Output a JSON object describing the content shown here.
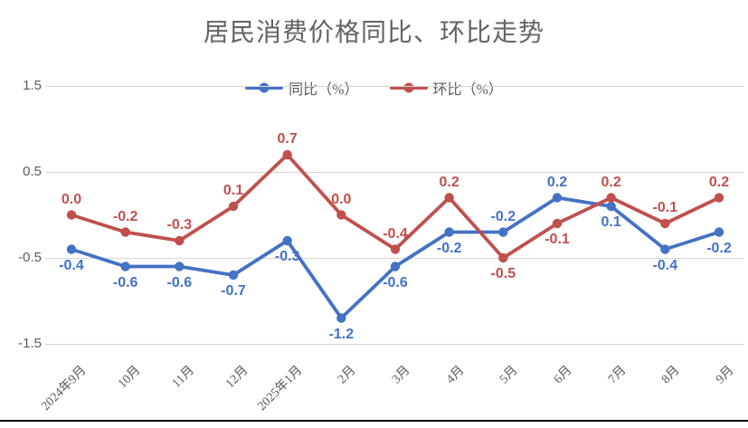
{
  "title": "居民消费价格同比、环比走势",
  "chart_data": {
    "type": "line",
    "title": "居民消费价格同比、环比走势",
    "categories": [
      "2024年9月",
      "10月",
      "11月",
      "12月",
      "2025年1月",
      "2月",
      "3月",
      "4月",
      "5月",
      "6月",
      "7月",
      "8月",
      "9月"
    ],
    "series": [
      {
        "name": "同比（%）",
        "color": "#4472C4",
        "values": [
          -0.4,
          -0.6,
          -0.6,
          -0.7,
          -0.3,
          -1.2,
          -0.6,
          -0.2,
          -0.2,
          0.2,
          0.1,
          -0.4,
          -0.2
        ],
        "label_side": [
          "below",
          "below",
          "below",
          "below",
          "below",
          "below",
          "below",
          "below",
          "above",
          "above",
          "below",
          "below",
          "below"
        ]
      },
      {
        "name": "环比（%）",
        "color": "#C0504D",
        "values": [
          0.0,
          -0.2,
          -0.3,
          0.1,
          0.7,
          0.0,
          -0.4,
          0.2,
          -0.5,
          -0.1,
          0.2,
          -0.1,
          0.2
        ],
        "label_side": [
          "above",
          "above",
          "above",
          "above",
          "above",
          "above",
          "above",
          "above",
          "below",
          "below",
          "above",
          "above",
          "above"
        ]
      }
    ],
    "y_axis": {
      "ticks": [
        1.5,
        0.5,
        -0.5,
        -1.5
      ],
      "min": -1.5,
      "max": 1.5,
      "decimals": 1
    },
    "xlabel": "",
    "ylabel": "",
    "grid": true,
    "legend_position": "top",
    "marker": "circle"
  },
  "styles": {
    "title_color": "#636363",
    "axis_text_color": "#595959",
    "gridline_color": "#d6d6d6"
  }
}
